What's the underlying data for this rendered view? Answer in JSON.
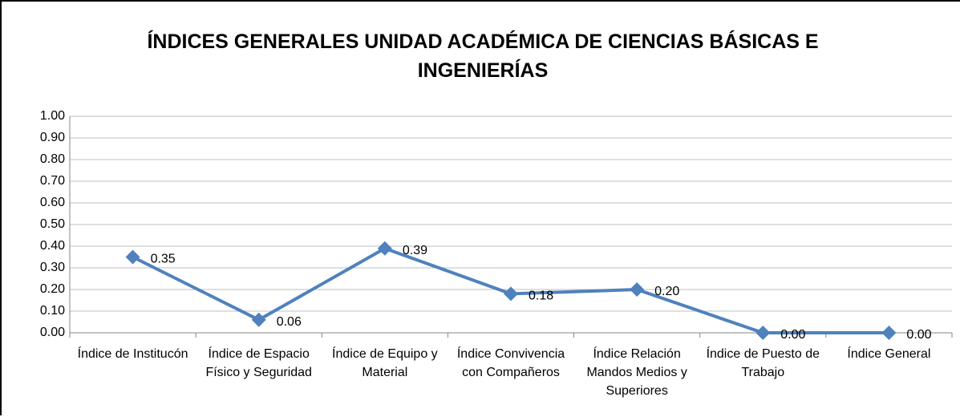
{
  "chart_data": {
    "type": "line",
    "title": "ÍNDICES GENERALES UNIDAD ACADÉMICA DE CIENCIAS BÁSICAS E INGENIERÍAS",
    "categories": [
      "Índice de Institucón",
      "Índice de Espacio Físico y Seguridad",
      "Índice de Equipo y Material",
      "Índice Convivencia con Compañeros",
      "Índice Relación Mandos Medios y Superiores",
      "Índice de Puesto de Trabajo",
      "Índice General"
    ],
    "values": [
      0.35,
      0.06,
      0.39,
      0.18,
      0.2,
      0,
      0
    ],
    "value_labels": [
      "0.35",
      "0.06",
      "0.39",
      "0.18",
      "0.20",
      "0.00",
      "0.00"
    ],
    "color": "#4f81bd",
    "ylim": [
      0,
      1
    ],
    "yticks": [
      {
        "value": 0,
        "label": "0.00"
      },
      {
        "value": 0.1,
        "label": "0.10"
      },
      {
        "value": 0.2,
        "label": "0.20"
      },
      {
        "value": 0.3,
        "label": "0.30"
      },
      {
        "value": 0.4,
        "label": "0.40"
      },
      {
        "value": 0.5,
        "label": "0.50"
      },
      {
        "value": 0.6,
        "label": "0.60"
      },
      {
        "value": 0.7,
        "label": "0.70"
      },
      {
        "value": 0.8,
        "label": "0.80"
      },
      {
        "value": 0.9,
        "label": "0.90"
      },
      {
        "value": 1,
        "label": "1.00"
      }
    ],
    "grid": true
  }
}
